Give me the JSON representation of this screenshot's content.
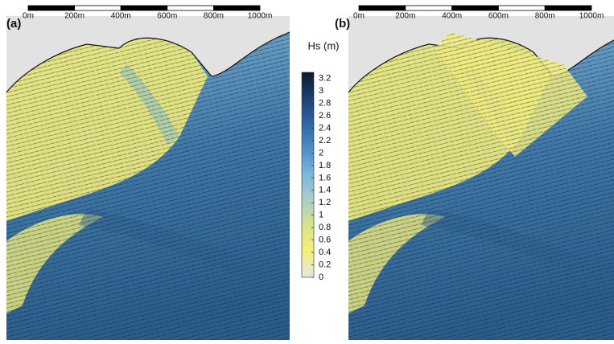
{
  "panels": [
    {
      "label": "(a)",
      "scale_labels": [
        "0m",
        "200m",
        "400m",
        "600m",
        "800m",
        "1000m"
      ]
    },
    {
      "label": "(b)",
      "scale_labels": [
        "0m",
        "200m",
        "400m",
        "600m",
        "800m",
        "1000m"
      ]
    }
  ],
  "colorbar": {
    "title": "Hs (m)",
    "lim": [
      0,
      3.3
    ],
    "ticks": [
      0,
      0.2,
      0.4,
      0.6,
      0.8,
      1,
      1.2,
      1.4,
      1.6,
      1.8,
      2,
      2.2,
      2.4,
      2.6,
      2.8,
      3,
      3.2
    ],
    "colors": [
      "#e6e6e6",
      "#f4f07a",
      "#d9e38a",
      "#a9cfc8",
      "#7fb8dc",
      "#4f8fc6",
      "#2f66a3",
      "#1d3f70",
      "#0a1a33"
    ]
  }
}
